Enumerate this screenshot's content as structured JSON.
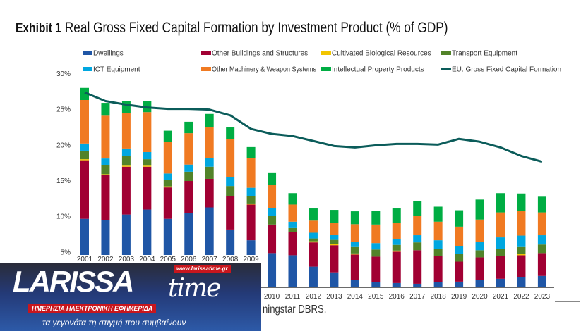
{
  "chart_data": {
    "type": "bar",
    "stacked": true,
    "title_prefix": "Exhibit 1",
    "title": "Real Gross Fixed Capital Formation by Investment Product (% of GDP)",
    "xlabel": "",
    "ylabel": "",
    "ylim": [
      0,
      30
    ],
    "yticks": [
      "5%",
      "10%",
      "15%",
      "20%",
      "25%",
      "30%"
    ],
    "ytick_values": [
      5,
      10,
      15,
      20,
      25,
      30
    ],
    "legend_position": "top",
    "categories": [
      "2001",
      "2002",
      "2003",
      "2004",
      "2005",
      "2006",
      "2007",
      "2008",
      "2009",
      "2010",
      "2011",
      "2012",
      "2013",
      "2014",
      "2015",
      "2016",
      "2017",
      "2018",
      "2019",
      "2020",
      "2021",
      "2022",
      "2023"
    ],
    "series": [
      {
        "name": "Dwellings",
        "color": "#1f56a6",
        "values": [
          9.6,
          9.4,
          10.2,
          10.9,
          9.6,
          10.4,
          11.2,
          8.1,
          6.6,
          4.8,
          4.5,
          2.9,
          2.1,
          1.0,
          0.7,
          0.6,
          0.5,
          0.7,
          0.8,
          1.0,
          1.2,
          1.4,
          1.6
        ]
      },
      {
        "name": "Other Buildings and Structures",
        "color": "#a10033",
        "values": [
          8.2,
          6.3,
          6.7,
          6.0,
          4.4,
          4.5,
          4.0,
          4.7,
          5.0,
          4.0,
          3.2,
          3.4,
          3.8,
          3.6,
          3.6,
          4.4,
          4.7,
          3.7,
          2.8,
          3.2,
          3.2,
          3.1,
          3.2
        ]
      },
      {
        "name": "Cultivated Biological Resources",
        "color": "#f2c500",
        "values": [
          0.15,
          0.15,
          0.15,
          0.15,
          0.15,
          0,
          0,
          0,
          0.15,
          0,
          0,
          0.15,
          0.15,
          0.15,
          0,
          0.15,
          0,
          0,
          0,
          0,
          0,
          0.15,
          0
        ]
      },
      {
        "name": "Transport Equipment",
        "color": "#528329",
        "values": [
          1.2,
          1.3,
          1.4,
          0.9,
          0.9,
          1.3,
          1.7,
          1.4,
          1.0,
          1.2,
          0.6,
          0.4,
          0.6,
          0.9,
          1.0,
          0.8,
          1.1,
          1.0,
          1.1,
          1.0,
          1.0,
          1.0,
          1.2
        ]
      },
      {
        "name": "ICT Equipment",
        "color": "#00a7e0",
        "values": [
          1.0,
          0.9,
          1.0,
          1.0,
          0.9,
          1.0,
          1.2,
          1.2,
          1.2,
          1.1,
          0.9,
          0.8,
          0.7,
          0.7,
          0.9,
          0.8,
          1.0,
          1.2,
          1.1,
          1.2,
          1.6,
          1.6,
          1.3
        ]
      },
      {
        "name": "Other Machinery & Weapon Systems",
        "color": "#f07a22",
        "values": [
          6.1,
          6.0,
          5.0,
          5.6,
          4.4,
          4.4,
          4.4,
          5.4,
          4.2,
          3.3,
          2.4,
          1.7,
          1.7,
          2.5,
          2.6,
          2.3,
          2.7,
          2.6,
          2.7,
          3.1,
          3.5,
          3.5,
          3.2
        ]
      },
      {
        "name": "Intellectual Property Products",
        "color": "#00ad43",
        "values": [
          1.7,
          1.8,
          1.7,
          1.6,
          1.6,
          1.6,
          1.8,
          1.6,
          1.5,
          1.7,
          1.6,
          1.7,
          1.8,
          1.8,
          1.9,
          2.0,
          2.1,
          2.1,
          2.3,
          2.8,
          2.7,
          2.4,
          2.2
        ]
      }
    ],
    "line_series": {
      "name": "EU: Gross Fixed Capital Formation",
      "color": "#0b5c5a",
      "values": [
        27.3,
        26.1,
        25.6,
        25.2,
        25.0,
        25.0,
        24.9,
        24.1,
        22.2,
        21.5,
        21.2,
        20.5,
        19.8,
        19.6,
        19.9,
        20.1,
        20.1,
        20.0,
        20.8,
        20.4,
        19.6,
        18.4,
        17.6
      ]
    }
  },
  "source_visible": "ningstar DBRS.",
  "logo": {
    "brand": "LARISSA",
    "brand_suffix": "time",
    "url": "www.larissatime.gr",
    "tagline": "ΗΜΕΡΗΣΙΑ ΗΛΕΚΤΡΟΝΙΚΗ ΕΦΗΜΕΡΙΔΑ",
    "slogan": "τα γεγονότα τη στιγμή που συμβαίνουν"
  }
}
